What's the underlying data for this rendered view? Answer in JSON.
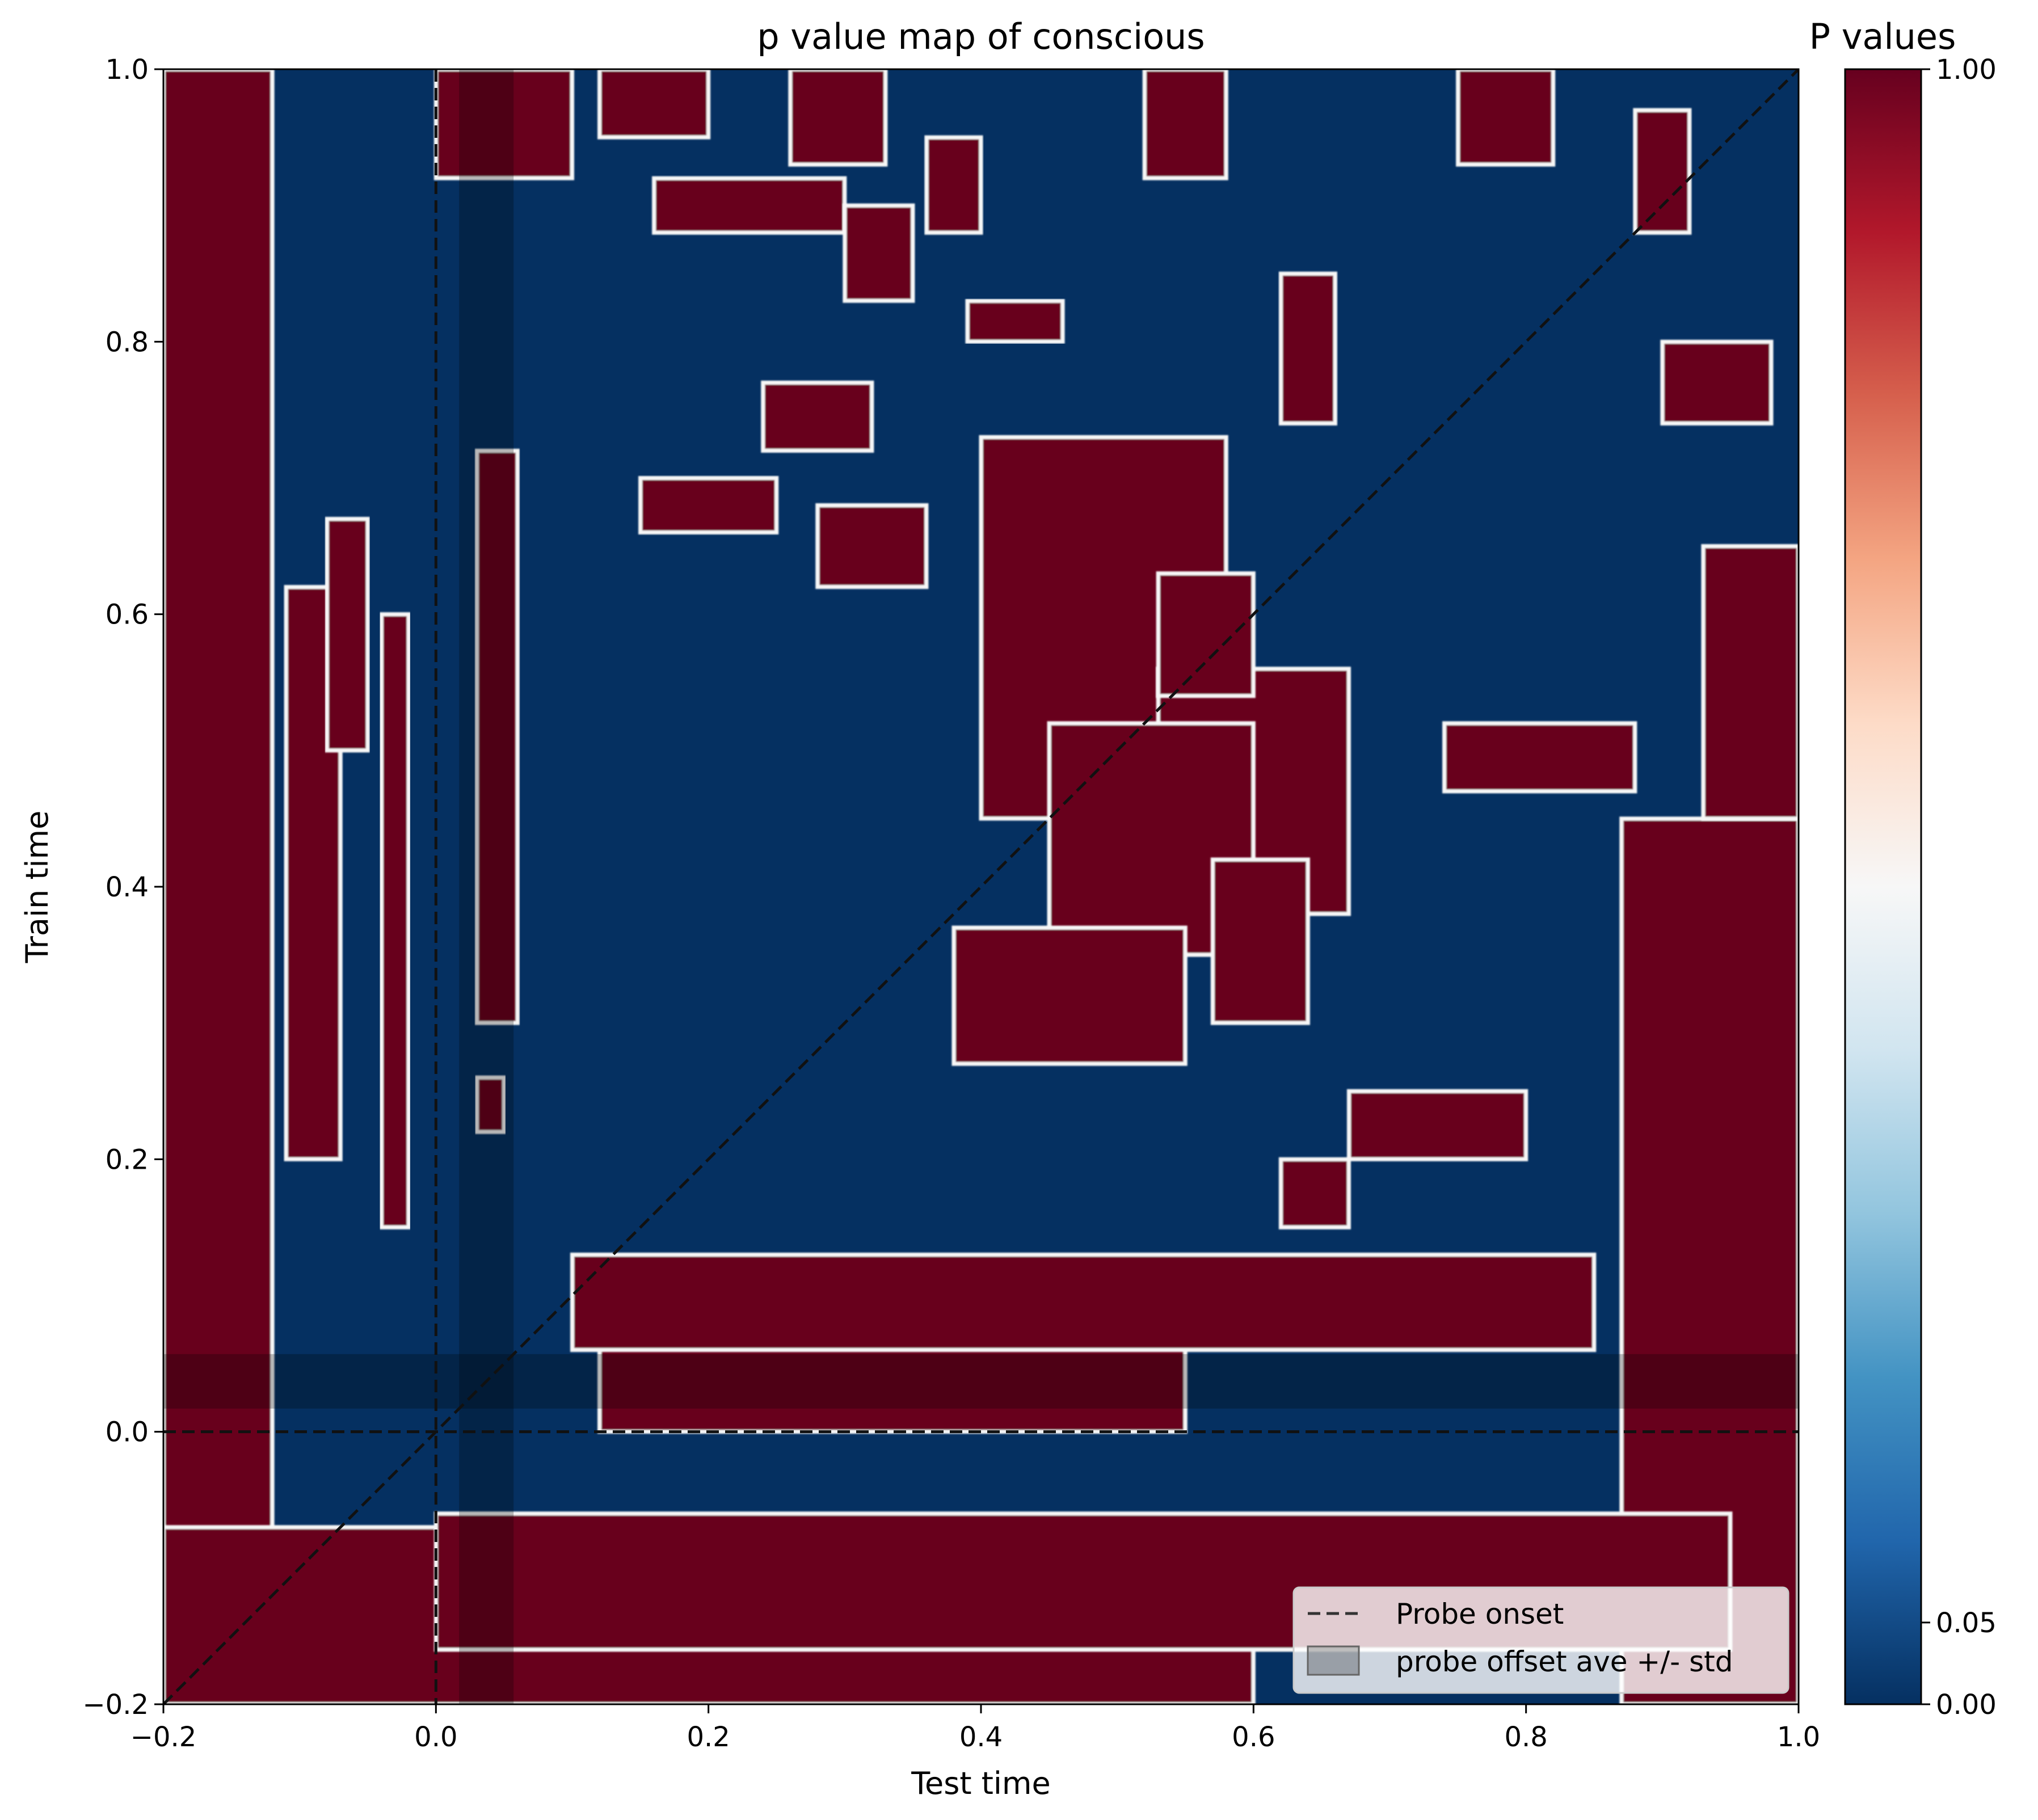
{
  "chart_data": {
    "type": "heatmap",
    "title": "p value map of conscious",
    "xlabel": "Test time",
    "ylabel": "Train time",
    "xlim": [
      -0.2,
      1.0
    ],
    "ylim": [
      -0.2,
      1.0
    ],
    "x_ticks": [
      -0.2,
      0.0,
      0.2,
      0.4,
      0.6,
      0.8,
      1.0
    ],
    "y_ticks": [
      -0.2,
      0.0,
      0.2,
      0.4,
      0.6,
      0.8,
      1.0
    ],
    "x_tick_labels": [
      "−0.2",
      "0.0",
      "0.2",
      "0.4",
      "0.6",
      "0.8",
      "1.0"
    ],
    "y_tick_labels": [
      "−0.2",
      "0.0",
      "0.2",
      "0.4",
      "0.6",
      "0.8",
      "1.0"
    ],
    "colormap": "RdBu_r",
    "colorbar": {
      "title": "P values",
      "ticks": [
        0.0,
        0.05,
        1.0
      ],
      "tick_labels": [
        "0.00",
        "0.05",
        "1.00"
      ],
      "range": [
        0.0,
        1.0
      ]
    },
    "colors": {
      "significant": "#053061",
      "nonsignificant": "#67001f",
      "contour": "#f7f7f7",
      "shade": "#000000"
    },
    "reference_lines": {
      "probe_onset": 0.0,
      "diagonal": true
    },
    "shaded_band": {
      "start": 0.017,
      "end": 0.057,
      "orientation": "both"
    },
    "legend": {
      "placement": "lower right",
      "entries": [
        {
          "label": "Probe onset",
          "style": "dashed-line"
        },
        {
          "label": "probe offset ave +/- std",
          "style": "gray-patch"
        }
      ]
    },
    "regions": {
      "nonsignificant": [
        [
          -0.2,
          -0.2,
          -0.12,
          1.0
        ],
        [
          0.87,
          -0.2,
          1.0,
          0.45
        ],
        [
          0.93,
          0.45,
          1.0,
          0.65
        ],
        [
          -0.2,
          -0.2,
          0.6,
          -0.07
        ],
        [
          0.0,
          -0.16,
          0.95,
          -0.06
        ],
        [
          0.12,
          0.0,
          0.55,
          0.1
        ],
        [
          0.1,
          0.06,
          0.85,
          0.13
        ],
        [
          0.4,
          0.45,
          0.58,
          0.73
        ],
        [
          0.53,
          0.38,
          0.67,
          0.56
        ],
        [
          0.45,
          0.35,
          0.6,
          0.52
        ],
        [
          0.57,
          0.3,
          0.64,
          0.42
        ],
        [
          0.38,
          0.27,
          0.55,
          0.37
        ],
        [
          0.53,
          0.54,
          0.6,
          0.63
        ],
        [
          -0.11,
          0.2,
          -0.07,
          0.62
        ],
        [
          -0.08,
          0.5,
          -0.05,
          0.67
        ],
        [
          0.03,
          0.3,
          0.06,
          0.72
        ],
        [
          -0.04,
          0.15,
          -0.02,
          0.6
        ],
        [
          0.0,
          0.92,
          0.1,
          1.0
        ],
        [
          0.12,
          0.95,
          0.2,
          1.0
        ],
        [
          0.26,
          0.93,
          0.33,
          1.0
        ],
        [
          0.36,
          0.88,
          0.4,
          0.95
        ],
        [
          0.52,
          0.92,
          0.58,
          1.0
        ],
        [
          0.75,
          0.93,
          0.82,
          1.0
        ],
        [
          0.88,
          0.88,
          0.92,
          0.97
        ],
        [
          0.16,
          0.88,
          0.3,
          0.92
        ],
        [
          0.3,
          0.83,
          0.35,
          0.9
        ],
        [
          0.39,
          0.8,
          0.46,
          0.83
        ],
        [
          0.24,
          0.72,
          0.32,
          0.77
        ],
        [
          0.15,
          0.66,
          0.25,
          0.7
        ],
        [
          0.28,
          0.62,
          0.36,
          0.68
        ],
        [
          0.74,
          0.47,
          0.88,
          0.52
        ],
        [
          0.67,
          0.2,
          0.8,
          0.25
        ],
        [
          0.62,
          0.15,
          0.67,
          0.2
        ],
        [
          0.9,
          0.74,
          0.98,
          0.8
        ],
        [
          0.62,
          0.74,
          0.66,
          0.85
        ],
        [
          0.03,
          0.22,
          0.05,
          0.26
        ]
      ]
    }
  }
}
